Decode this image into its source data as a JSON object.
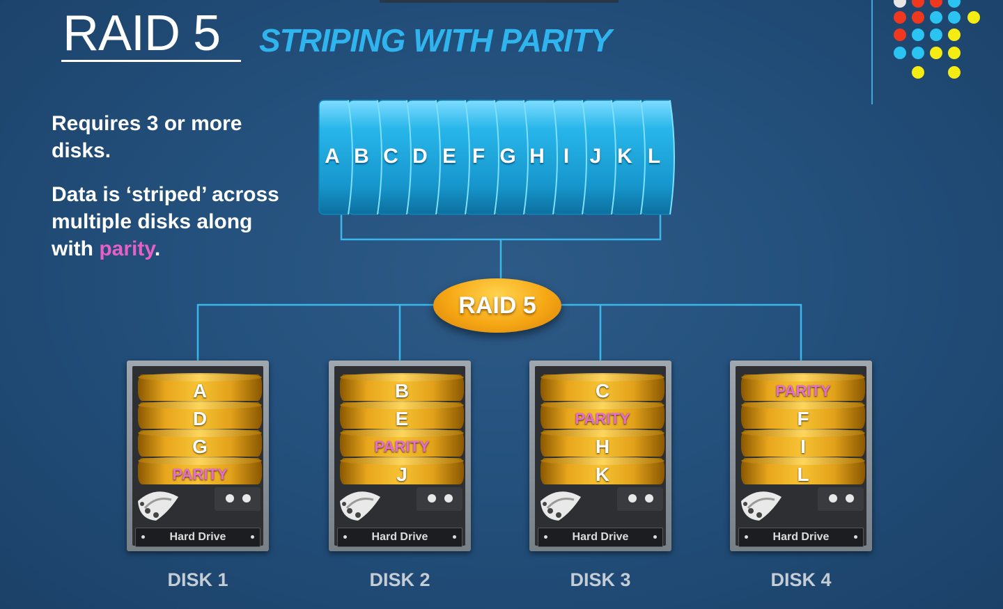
{
  "title": "RAID 5",
  "subtitle": "STRIPING WITH PARITY",
  "text": {
    "requires": "Requires 3 or more disks.",
    "desc_prefix": "Data is ‘striped’ across multiple disks along with",
    "desc_highlight": "parity",
    "desc_suffix": "."
  },
  "data_blocks": [
    "A",
    "B",
    "C",
    "D",
    "E",
    "F",
    "G",
    "H",
    "I",
    "J",
    "K",
    "L"
  ],
  "controller_label": "RAID 5",
  "drive_caption": "Hard Drive",
  "disks": [
    {
      "label": "DISK 1",
      "blocks": [
        "A",
        "D",
        "G",
        "PARITY"
      ]
    },
    {
      "label": "DISK 2",
      "blocks": [
        "B",
        "E",
        "PARITY",
        "J"
      ]
    },
    {
      "label": "DISK 3",
      "blocks": [
        "C",
        "PARITY",
        "H",
        "K"
      ]
    },
    {
      "label": "DISK 4",
      "blocks": [
        "PARITY",
        "F",
        "I",
        "L"
      ]
    }
  ],
  "colors": {
    "accent_blue": "#2fb4ee",
    "parity_pink": "#e85fc7",
    "cylinder_gold": "#f1b328",
    "controller_orange": "#f6a714",
    "dot_red": "#f0381f",
    "dot_cyan": "#2bc3f2",
    "dot_yellow": "#f5ec14",
    "dot_white": "#e6e6e6"
  },
  "decor_icons": [
    "dot-grid-logo",
    "platter-icon",
    "led-icon"
  ]
}
